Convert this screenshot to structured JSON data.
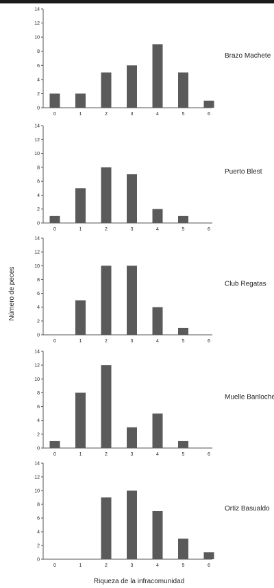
{
  "chart_data": {
    "type": "bar",
    "xlabel": "Riqueza de la infracomunidad",
    "ylabel": "Número de peces",
    "categories": [
      "0",
      "1",
      "2",
      "3",
      "4",
      "5",
      "6"
    ],
    "ylim": [
      0,
      14
    ],
    "yticks": [
      "0",
      "2",
      "4",
      "6",
      "8",
      "10",
      "12",
      "14"
    ],
    "grid": false,
    "colors": {
      "bar": "#5a5a5a",
      "axis": "#555555",
      "text": "#222222"
    },
    "panels": [
      {
        "label": "Brazo Machete",
        "values": [
          2,
          2,
          5,
          6,
          9,
          5,
          1
        ]
      },
      {
        "label": "Puerto Blest",
        "values": [
          1,
          5,
          8,
          7,
          2,
          1,
          0
        ]
      },
      {
        "label": "Club Regatas",
        "values": [
          0,
          5,
          10,
          10,
          4,
          1,
          0
        ]
      },
      {
        "label": "Muelle Bariloche",
        "values": [
          1,
          8,
          12,
          3,
          5,
          1,
          0
        ]
      },
      {
        "label": "Ortiz Basualdo",
        "values": [
          0,
          0,
          9,
          10,
          7,
          3,
          1
        ]
      }
    ]
  }
}
